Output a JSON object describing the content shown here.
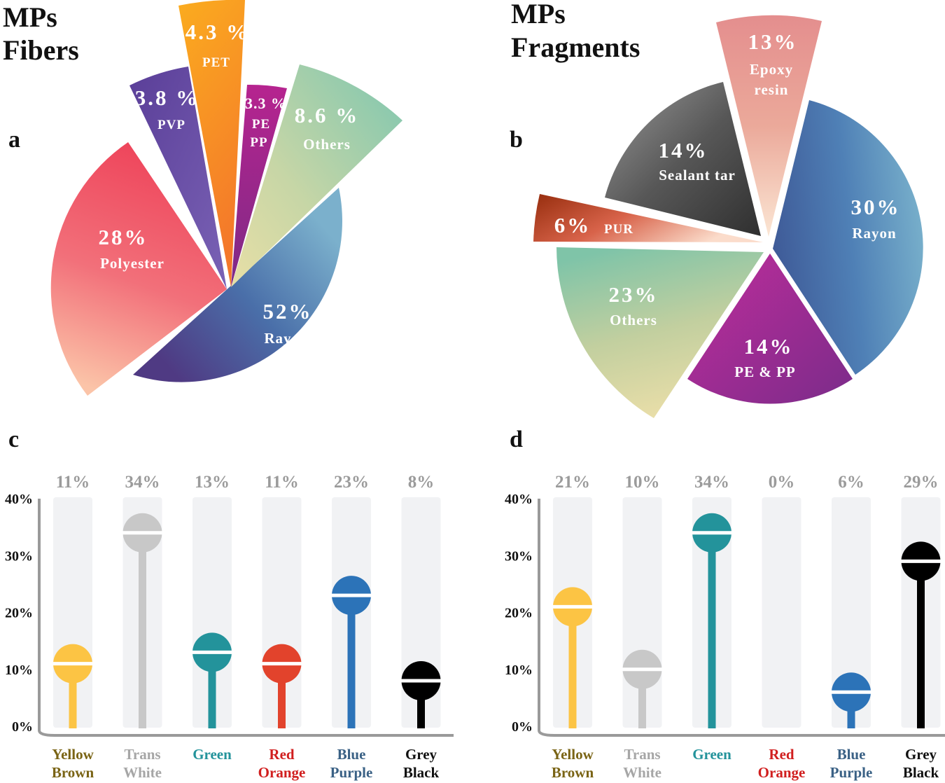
{
  "panels": {
    "a": {
      "letter": "a",
      "title_line1": "MPs",
      "title_line2": "Fibers",
      "slices": [
        {
          "id": "rayon",
          "pct": "52%",
          "name": "Rayon",
          "value": 52
        },
        {
          "id": "polyester",
          "pct": "28%",
          "name": "Polyester",
          "value": 28
        },
        {
          "id": "pvp",
          "pct": "3.8 %",
          "name": "PVP",
          "value": 3.8
        },
        {
          "id": "pet",
          "pct": "4.3 %",
          "name": "PET",
          "value": 4.3
        },
        {
          "id": "pepp",
          "pct": "3.3 %",
          "name_line1": "PE",
          "name_line2": "PP",
          "value": 3.3
        },
        {
          "id": "others",
          "pct": "8.6 %",
          "name": "Others",
          "value": 8.6
        }
      ]
    },
    "b": {
      "letter": "b",
      "title_line1": "MPs",
      "title_line2": "Fragments",
      "slices": [
        {
          "id": "rayon",
          "pct": "30%",
          "name": "Rayon",
          "value": 30
        },
        {
          "id": "pepp",
          "pct": "14%",
          "name": "PE & PP",
          "value": 14
        },
        {
          "id": "others",
          "pct": "23%",
          "name": "Others",
          "value": 23
        },
        {
          "id": "pur",
          "pct": "6%",
          "name": "PUR",
          "value": 6
        },
        {
          "id": "sealant",
          "pct": "14%",
          "name": "Sealant tar",
          "value": 14
        },
        {
          "id": "epoxy",
          "pct": "13%",
          "name_line1": "Epoxy",
          "name_line2": "resin",
          "value": 13
        }
      ]
    },
    "c": {
      "letter": "c"
    },
    "d": {
      "letter": "d"
    }
  },
  "chart_data": [
    {
      "panel": "a",
      "type": "pie",
      "title": "MPs Fibers",
      "categories": [
        "Rayon",
        "Polyester",
        "PVP",
        "PET",
        "PE PP",
        "Others"
      ],
      "values": [
        52,
        28,
        3.8,
        4.3,
        3.3,
        8.6
      ],
      "unit": "%"
    },
    {
      "panel": "b",
      "type": "pie",
      "title": "MPs Fragments",
      "categories": [
        "Rayon",
        "PE & PP",
        "Others",
        "PUR",
        "Sealant tar",
        "Epoxy resin"
      ],
      "values": [
        30,
        14,
        23,
        6,
        14,
        13
      ],
      "unit": "%"
    },
    {
      "panel": "c",
      "type": "bar",
      "style": "lollipop",
      "categories": [
        {
          "line1": "Yellow",
          "line2": "Brown",
          "color": "#fcc444",
          "label_color": "#7a6415"
        },
        {
          "line1": "Trans",
          "line2": "White",
          "color": "#c8c8c8",
          "label_color": "#a6a6a6"
        },
        {
          "line1": "Green",
          "line2": "",
          "color": "#23939b",
          "label_color": "#23939b"
        },
        {
          "line1": "Red",
          "line2": "Orange",
          "color": "#e2432c",
          "label_color": "#d11f1f"
        },
        {
          "line1": "Blue",
          "line2": "Purple",
          "color": "#2c73b8",
          "label_color": "#3a6185"
        },
        {
          "line1": "Grey",
          "line2": "Black",
          "color": "#000000",
          "label_color": "#111111"
        }
      ],
      "values": [
        11,
        34,
        13,
        11,
        23,
        8
      ],
      "value_labels": [
        "11%",
        "34%",
        "13%",
        "11%",
        "23%",
        "8%"
      ],
      "yticks": [
        "0%",
        "10%",
        "20%",
        "30%",
        "40%"
      ],
      "ylim": [
        0,
        40
      ]
    },
    {
      "panel": "d",
      "type": "bar",
      "style": "lollipop",
      "categories": [
        {
          "line1": "Yellow",
          "line2": "Brown",
          "color": "#fcc444",
          "label_color": "#7a6415"
        },
        {
          "line1": "Trans",
          "line2": "White",
          "color": "#c8c8c8",
          "label_color": "#a6a6a6"
        },
        {
          "line1": "Green",
          "line2": "",
          "color": "#23939b",
          "label_color": "#23939b"
        },
        {
          "line1": "Red",
          "line2": "Orange",
          "color": "#e2432c",
          "label_color": "#d11f1f"
        },
        {
          "line1": "Blue",
          "line2": "Purple",
          "color": "#2c73b8",
          "label_color": "#3a6185"
        },
        {
          "line1": "Grey",
          "line2": "Black",
          "color": "#000000",
          "label_color": "#111111"
        }
      ],
      "values": [
        21,
        10,
        34,
        0,
        6,
        29
      ],
      "value_labels": [
        "21%",
        "10%",
        "34%",
        "0%",
        "6%",
        "29%"
      ],
      "yticks": [
        "0%",
        "10%",
        "20%",
        "30%",
        "40%"
      ],
      "ylim": [
        0,
        40
      ]
    }
  ]
}
